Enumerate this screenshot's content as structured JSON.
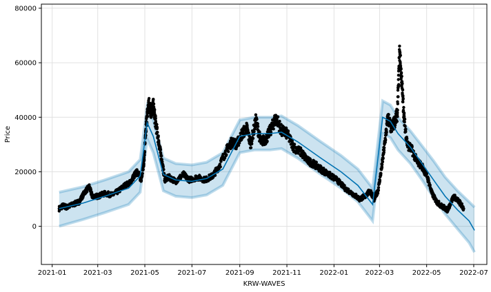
{
  "chart_data": {
    "type": "line",
    "title": "",
    "xlabel": "KRW-WAVES",
    "ylabel": "Price",
    "x_type": "date",
    "xlim": [
      "2020-12-18",
      "2022-07-18"
    ],
    "ylim": [
      -14000,
      81500
    ],
    "grid": true,
    "x_ticks": [
      {
        "value": "2021-01-01",
        "label": "2021-01"
      },
      {
        "value": "2021-03-01",
        "label": "2021-03"
      },
      {
        "value": "2021-05-01",
        "label": "2021-05"
      },
      {
        "value": "2021-07-01",
        "label": "2021-07"
      },
      {
        "value": "2021-09-01",
        "label": "2021-09"
      },
      {
        "value": "2021-11-01",
        "label": "2021-11"
      },
      {
        "value": "2022-01-01",
        "label": "2022-01"
      },
      {
        "value": "2022-03-01",
        "label": "2022-03"
      },
      {
        "value": "2022-05-01",
        "label": "2022-05"
      },
      {
        "value": "2022-07-01",
        "label": "2022-07"
      }
    ],
    "y_ticks": [
      {
        "value": 0,
        "label": "0"
      },
      {
        "value": 20000,
        "label": "20000"
      },
      {
        "value": 40000,
        "label": "40000"
      },
      {
        "value": 60000,
        "label": "60000"
      },
      {
        "value": 80000,
        "label": "80000"
      }
    ],
    "colors": {
      "forecast_line": "#0072B2",
      "uncertainty_band": "#0072B2",
      "observed_points": "#000000"
    },
    "series": [
      {
        "kind": "observed",
        "style": "scatter",
        "x": [
          "2021-01-10",
          "2021-01-15",
          "2021-01-20",
          "2021-01-28",
          "2021-02-05",
          "2021-02-12",
          "2021-02-18",
          "2021-02-22",
          "2021-03-01",
          "2021-03-10",
          "2021-03-20",
          "2021-03-28",
          "2021-04-05",
          "2021-04-12",
          "2021-04-18",
          "2021-04-22",
          "2021-04-26",
          "2021-04-30",
          "2021-05-03",
          "2021-05-06",
          "2021-05-09",
          "2021-05-12",
          "2021-05-15",
          "2021-05-19",
          "2021-05-23",
          "2021-05-27",
          "2021-06-01",
          "2021-06-10",
          "2021-06-20",
          "2021-06-28",
          "2021-07-08",
          "2021-07-18",
          "2021-07-28",
          "2021-08-05",
          "2021-08-15",
          "2021-08-22",
          "2021-08-28",
          "2021-09-04",
          "2021-09-10",
          "2021-09-15",
          "2021-09-22",
          "2021-09-28",
          "2021-10-05",
          "2021-10-12",
          "2021-10-18",
          "2021-10-25",
          "2021-11-01",
          "2021-11-10",
          "2021-11-20",
          "2021-11-28",
          "2021-12-05",
          "2021-12-15",
          "2021-12-25",
          "2022-01-05",
          "2022-01-15",
          "2022-01-25",
          "2022-02-03",
          "2022-02-10",
          "2022-02-17",
          "2022-02-22",
          "2022-02-27",
          "2022-03-04",
          "2022-03-08",
          "2022-03-12",
          "2022-03-16",
          "2022-03-20",
          "2022-03-24",
          "2022-03-27",
          "2022-03-30",
          "2022-04-02",
          "2022-04-06",
          "2022-04-12",
          "2022-04-18",
          "2022-04-25",
          "2022-05-02",
          "2022-05-08",
          "2022-05-14",
          "2022-05-20",
          "2022-05-28",
          "2022-06-05",
          "2022-06-12",
          "2022-06-18"
        ],
        "y": [
          6500,
          7500,
          7000,
          8000,
          9000,
          12500,
          14500,
          11000,
          11000,
          12000,
          11500,
          13000,
          15000,
          16000,
          19000,
          20000,
          17000,
          24000,
          38000,
          45000,
          42000,
          44000,
          38000,
          31000,
          24000,
          17000,
          18000,
          16500,
          19000,
          17000,
          18000,
          17000,
          18500,
          22000,
          28000,
          31000,
          30000,
          34000,
          36000,
          30000,
          39000,
          31000,
          32000,
          36000,
          40000,
          35000,
          34000,
          29000,
          27000,
          24000,
          23000,
          21000,
          19000,
          17000,
          14000,
          12000,
          10000,
          11000,
          13000,
          10000,
          13000,
          22000,
          31000,
          40000,
          36000,
          38000,
          41000,
          64000,
          52000,
          39000,
          30000,
          28000,
          24000,
          22000,
          18000,
          12000,
          9000,
          7500,
          6000,
          11000,
          9000,
          6500
        ]
      },
      {
        "kind": "forecast",
        "style": "line",
        "x": [
          "2021-01-10",
          "2021-02-10",
          "2021-03-10",
          "2021-04-10",
          "2021-04-25",
          "2021-05-04",
          "2021-05-12",
          "2021-05-25",
          "2021-06-10",
          "2021-07-01",
          "2021-07-20",
          "2021-08-10",
          "2021-09-01",
          "2021-09-20",
          "2021-10-10",
          "2021-10-25",
          "2021-11-15",
          "2021-12-15",
          "2022-01-10",
          "2022-02-01",
          "2022-02-20",
          "2022-03-05",
          "2022-03-15",
          "2022-03-25",
          "2022-04-10",
          "2022-04-25",
          "2022-05-10",
          "2022-05-25",
          "2022-06-10",
          "2022-06-25",
          "2022-07-02"
        ],
        "y": [
          6500,
          8500,
          11000,
          14000,
          18500,
          38000,
          33000,
          19000,
          17000,
          16500,
          17500,
          21000,
          33000,
          34000,
          34000,
          34500,
          31000,
          25000,
          20000,
          15000,
          8000,
          40000,
          38500,
          34000,
          29000,
          23000,
          17000,
          11000,
          6000,
          2000,
          -1500
        ]
      },
      {
        "kind": "uncertainty_upper",
        "style": "band",
        "x": [
          "2021-01-10",
          "2021-02-10",
          "2021-03-10",
          "2021-04-10",
          "2021-04-25",
          "2021-05-04",
          "2021-05-12",
          "2021-05-25",
          "2021-06-10",
          "2021-07-01",
          "2021-07-20",
          "2021-08-10",
          "2021-09-01",
          "2021-09-20",
          "2021-10-10",
          "2021-10-25",
          "2021-11-15",
          "2021-12-15",
          "2022-01-10",
          "2022-02-01",
          "2022-02-20",
          "2022-03-05",
          "2022-03-15",
          "2022-03-25",
          "2022-04-10",
          "2022-04-25",
          "2022-05-10",
          "2022-05-25",
          "2022-06-10",
          "2022-06-25",
          "2022-07-02"
        ],
        "y": [
          12500,
          14500,
          17000,
          20000,
          24500,
          44000,
          39000,
          25000,
          23000,
          22500,
          23500,
          27000,
          39000,
          40000,
          40000,
          40500,
          37000,
          31000,
          26000,
          21000,
          14000,
          46000,
          44500,
          40000,
          35000,
          29500,
          24000,
          18000,
          13000,
          9000,
          7000
        ]
      },
      {
        "kind": "uncertainty_lower",
        "style": "band",
        "x": [
          "2021-01-10",
          "2021-02-10",
          "2021-03-10",
          "2021-04-10",
          "2021-04-25",
          "2021-05-04",
          "2021-05-12",
          "2021-05-25",
          "2021-06-10",
          "2021-07-01",
          "2021-07-20",
          "2021-08-10",
          "2021-09-01",
          "2021-09-20",
          "2021-10-10",
          "2021-10-25",
          "2021-11-15",
          "2021-12-15",
          "2022-01-10",
          "2022-02-01",
          "2022-02-20",
          "2022-03-05",
          "2022-03-15",
          "2022-03-25",
          "2022-04-10",
          "2022-04-25",
          "2022-05-10",
          "2022-05-25",
          "2022-06-10",
          "2022-06-25",
          "2022-07-02"
        ],
        "y": [
          0,
          2500,
          5000,
          8000,
          12500,
          32000,
          27000,
          13000,
          11000,
          10500,
          11500,
          15000,
          27000,
          28000,
          28000,
          28500,
          25000,
          19000,
          14000,
          9000,
          2000,
          34000,
          32500,
          28000,
          23000,
          17000,
          10500,
          4500,
          -1000,
          -6000,
          -9500
        ]
      }
    ]
  }
}
